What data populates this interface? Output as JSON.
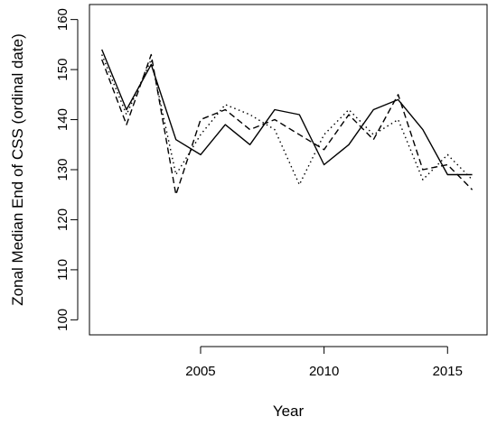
{
  "chart_data": {
    "type": "line",
    "title": "",
    "xlabel": "Year",
    "ylabel": "Zonal Median End of CSS (ordinal date)",
    "xlim": [
      2000.5,
      2016.6
    ],
    "ylim": [
      97,
      163
    ],
    "x_ticks": [
      2005,
      2010,
      2015
    ],
    "y_ticks": [
      100,
      110,
      120,
      130,
      140,
      150,
      160
    ],
    "grid": false,
    "legend": "none",
    "x": [
      2001,
      2002,
      2003,
      2004,
      2005,
      2006,
      2007,
      2008,
      2009,
      2010,
      2011,
      2012,
      2013,
      2014,
      2015,
      2016
    ],
    "series": [
      {
        "style": "solid",
        "color": "#000000",
        "values": [
          154,
          142,
          151,
          136,
          133,
          139,
          135,
          142,
          141,
          131,
          135,
          142,
          144,
          138,
          129,
          129
        ]
      },
      {
        "style": "dashed",
        "color": "#000000",
        "values": [
          152,
          139,
          153,
          125,
          140,
          142,
          138,
          140,
          137,
          134,
          141,
          136,
          145,
          130,
          131,
          126
        ]
      },
      {
        "style": "dotted",
        "color": "#000000",
        "values": [
          153,
          141,
          152,
          129,
          137,
          143,
          141,
          138,
          127,
          137,
          142,
          137,
          140,
          128,
          133,
          128
        ]
      }
    ]
  }
}
